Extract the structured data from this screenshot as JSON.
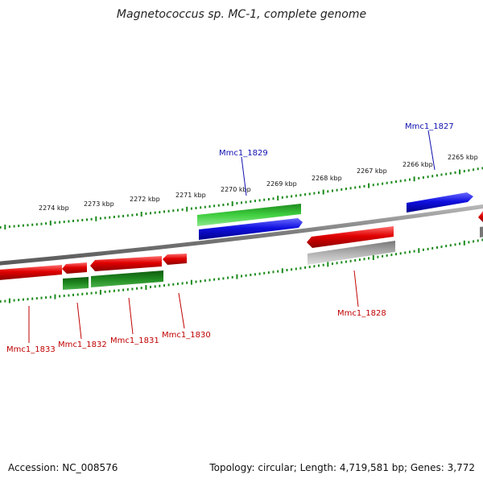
{
  "title": "Magnetococcus sp. MC-1, complete genome",
  "footer": {
    "accession": "Accession: NC_008576",
    "summary": "Topology: circular; Length: 4,719,581 bp; Genes: 3,772"
  },
  "colors": {
    "forward_cds": "#1010e0",
    "reverse_cds": "#e00000",
    "gene_forward": "#22b022",
    "gene_reverse": "#177a17",
    "gene_other": "#a8a8a8",
    "backbone": "#888888",
    "ruler": "#1a8a1a",
    "label_blue": "#1010b0",
    "label_red": "#c00000"
  },
  "ruler_labels": [
    "2274 kbp",
    "2273 kbp",
    "2272 kbp",
    "2271 kbp",
    "2270 kbp",
    "2269 kbp",
    "2268 kbp",
    "2267 kbp",
    "2266 kbp",
    "2265 kbp"
  ],
  "gene_labels": [
    {
      "text": "Mmc1_1829",
      "strand": "forward"
    },
    {
      "text": "Mmc1_1827",
      "strand": "forward"
    },
    {
      "text": "Mmc1_1828",
      "strand": "reverse"
    },
    {
      "text": "Mmc1_1833",
      "strand": "reverse"
    },
    {
      "text": "Mmc1_1832",
      "strand": "reverse"
    },
    {
      "text": "Mmc1_1831",
      "strand": "reverse"
    },
    {
      "text": "Mmc1_1830",
      "strand": "reverse"
    }
  ]
}
